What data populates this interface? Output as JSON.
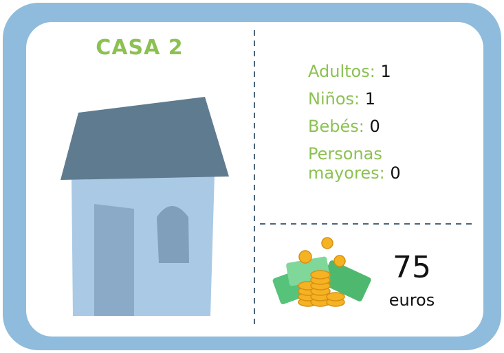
{
  "title": "CASA 2",
  "members": [
    {
      "label": "Adultos:",
      "value": 1
    },
    {
      "label": "Niños:",
      "value": 1
    },
    {
      "label": "Bebés:",
      "value": 0
    },
    {
      "label": "Personas mayores:",
      "value": 0
    }
  ],
  "price": {
    "value": 75,
    "unit": "euros"
  }
}
